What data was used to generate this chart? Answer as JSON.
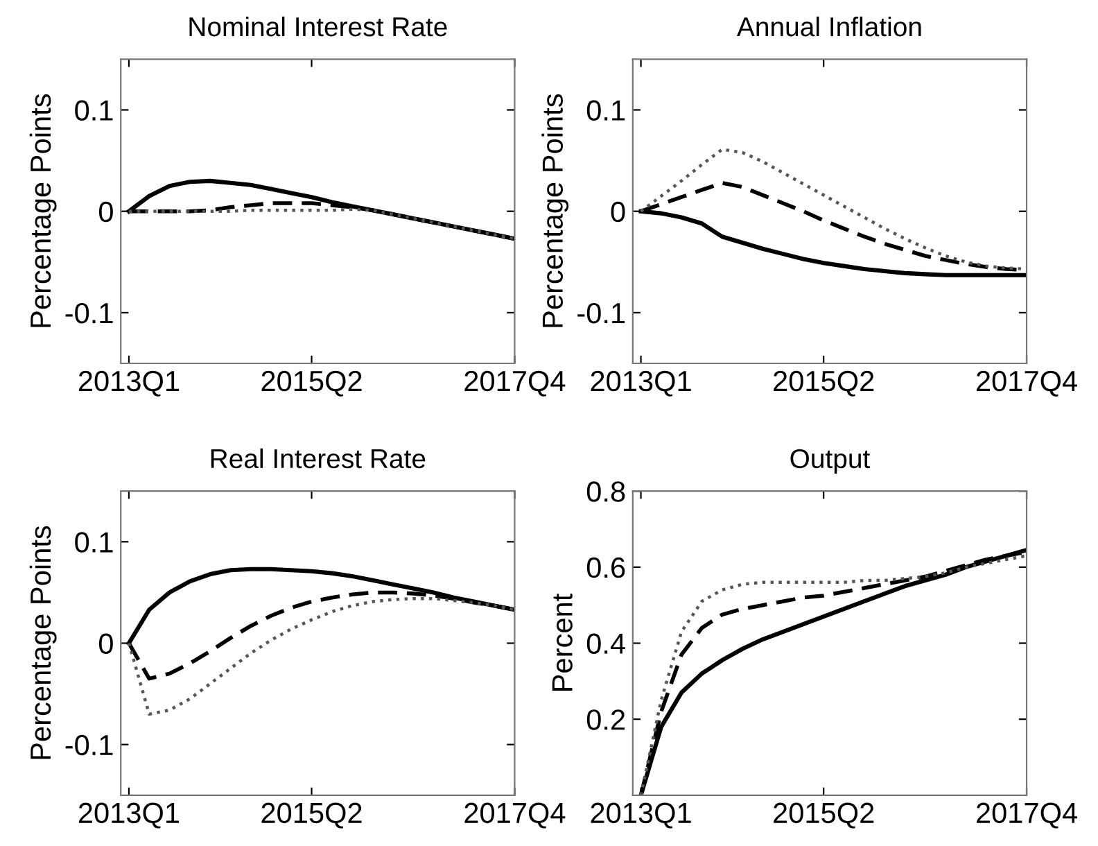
{
  "chart_data": [
    {
      "type": "line",
      "title": "Nominal Interest Rate",
      "ylabel": "Percentage Points",
      "categories": [
        "2013Q1",
        null,
        null,
        null,
        null,
        null,
        null,
        null,
        null,
        "2015Q2",
        null,
        null,
        null,
        null,
        null,
        null,
        null,
        null,
        null,
        "2017Q4"
      ],
      "ylim": [
        -0.15,
        0.15
      ],
      "yticks": [
        -0.1,
        0,
        0.1
      ],
      "grid": false,
      "legend": false,
      "series": [
        {
          "color": "#000000",
          "line_style": "solid",
          "values": [
            0,
            0.015,
            0.025,
            0.029,
            0.03,
            0.028,
            0.026,
            0.022,
            0.018,
            0.014,
            0.009,
            0.005,
            0.001,
            -0.003,
            -0.007,
            -0.011,
            -0.015,
            -0.019,
            -0.023,
            -0.027
          ]
        },
        {
          "color": "#000000",
          "line_style": "dashed",
          "values": [
            0,
            0,
            0,
            0,
            0.001,
            0.004,
            0.006,
            0.008,
            0.008,
            0.008,
            0.006,
            0.004,
            0.001,
            -0.003,
            -0.007,
            -0.011,
            -0.015,
            -0.019,
            -0.023,
            -0.027
          ]
        },
        {
          "color": "#555555",
          "line_style": "dotted",
          "values": [
            0,
            0,
            0,
            0,
            0,
            0,
            0.001,
            0.001,
            0.001,
            0.001,
            0.001,
            0.002,
            0.001,
            -0.003,
            -0.007,
            -0.011,
            -0.015,
            -0.019,
            -0.023,
            -0.027
          ]
        }
      ]
    },
    {
      "type": "line",
      "title": "Annual Inflation",
      "ylabel": "Percentage Points",
      "categories": [
        "2013Q1",
        null,
        null,
        null,
        null,
        null,
        null,
        null,
        null,
        "2015Q2",
        null,
        null,
        null,
        null,
        null,
        null,
        null,
        null,
        null,
        "2017Q4"
      ],
      "ylim": [
        -0.15,
        0.15
      ],
      "yticks": [
        -0.1,
        0,
        0.1
      ],
      "grid": false,
      "legend": false,
      "series": [
        {
          "color": "#000000",
          "line_style": "solid",
          "values": [
            0,
            -0.002,
            -0.006,
            -0.012,
            -0.025,
            -0.031,
            -0.037,
            -0.042,
            -0.047,
            -0.051,
            -0.054,
            -0.057,
            -0.059,
            -0.061,
            -0.062,
            -0.063,
            -0.063,
            -0.063,
            -0.063,
            -0.063
          ]
        },
        {
          "color": "#000000",
          "line_style": "dashed",
          "values": [
            0,
            0.007,
            0.014,
            0.021,
            0.028,
            0.024,
            0.016,
            0.008,
            0.0,
            -0.009,
            -0.017,
            -0.025,
            -0.032,
            -0.038,
            -0.044,
            -0.048,
            -0.052,
            -0.055,
            -0.057,
            -0.058
          ]
        },
        {
          "color": "#555555",
          "line_style": "dotted",
          "values": [
            0,
            0.015,
            0.03,
            0.046,
            0.061,
            0.058,
            0.049,
            0.038,
            0.027,
            0.016,
            0.005,
            -0.006,
            -0.017,
            -0.027,
            -0.036,
            -0.044,
            -0.05,
            -0.054,
            -0.056,
            -0.057
          ]
        }
      ]
    },
    {
      "type": "line",
      "title": "Real Interest Rate",
      "ylabel": "Percentage Points",
      "categories": [
        "2013Q1",
        null,
        null,
        null,
        null,
        null,
        null,
        null,
        null,
        "2015Q2",
        null,
        null,
        null,
        null,
        null,
        null,
        null,
        null,
        null,
        "2017Q4"
      ],
      "ylim": [
        -0.15,
        0.15
      ],
      "yticks": [
        -0.1,
        0,
        0.1
      ],
      "grid": false,
      "legend": false,
      "series": [
        {
          "color": "#000000",
          "line_style": "solid",
          "values": [
            0,
            0.033,
            0.05,
            0.061,
            0.068,
            0.072,
            0.073,
            0.073,
            0.072,
            0.071,
            0.069,
            0.066,
            0.062,
            0.058,
            0.054,
            0.05,
            0.045,
            0.041,
            0.037,
            0.033
          ]
        },
        {
          "color": "#000000",
          "line_style": "dashed",
          "values": [
            0,
            -0.035,
            -0.03,
            -0.02,
            -0.008,
            0.005,
            0.017,
            0.027,
            0.035,
            0.041,
            0.045,
            0.048,
            0.05,
            0.05,
            0.049,
            0.047,
            0.044,
            0.04,
            0.037,
            0.033
          ]
        },
        {
          "color": "#555555",
          "line_style": "dotted",
          "values": [
            0,
            -0.07,
            -0.066,
            -0.055,
            -0.04,
            -0.025,
            -0.01,
            0.003,
            0.014,
            0.023,
            0.031,
            0.037,
            0.041,
            0.043,
            0.044,
            0.044,
            0.042,
            0.04,
            0.037,
            0.033
          ]
        }
      ]
    },
    {
      "type": "line",
      "title": "Output",
      "ylabel": "Percent",
      "categories": [
        "2013Q1",
        null,
        null,
        null,
        null,
        null,
        null,
        null,
        null,
        "2015Q2",
        null,
        null,
        null,
        null,
        null,
        null,
        null,
        null,
        null,
        "2017Q4"
      ],
      "ylim": [
        0,
        0.8
      ],
      "yticks": [
        0.2,
        0.4,
        0.6,
        0.8
      ],
      "grid": false,
      "legend": false,
      "series": [
        {
          "color": "#000000",
          "line_style": "solid",
          "values": [
            0,
            0.18,
            0.27,
            0.32,
            0.355,
            0.385,
            0.41,
            0.43,
            0.45,
            0.47,
            0.49,
            0.51,
            0.53,
            0.55,
            0.565,
            0.58,
            0.6,
            0.615,
            0.63,
            0.645
          ]
        },
        {
          "color": "#000000",
          "line_style": "dashed",
          "values": [
            0,
            0.22,
            0.37,
            0.44,
            0.475,
            0.49,
            0.5,
            0.51,
            0.52,
            0.525,
            0.535,
            0.545,
            0.555,
            0.565,
            0.575,
            0.59,
            0.605,
            0.62,
            0.63,
            0.64
          ]
        },
        {
          "color": "#555555",
          "line_style": "dotted",
          "values": [
            0,
            0.25,
            0.43,
            0.51,
            0.54,
            0.555,
            0.56,
            0.56,
            0.56,
            0.56,
            0.56,
            0.565,
            0.565,
            0.57,
            0.575,
            0.585,
            0.6,
            0.61,
            0.62,
            0.63
          ]
        }
      ]
    }
  ]
}
